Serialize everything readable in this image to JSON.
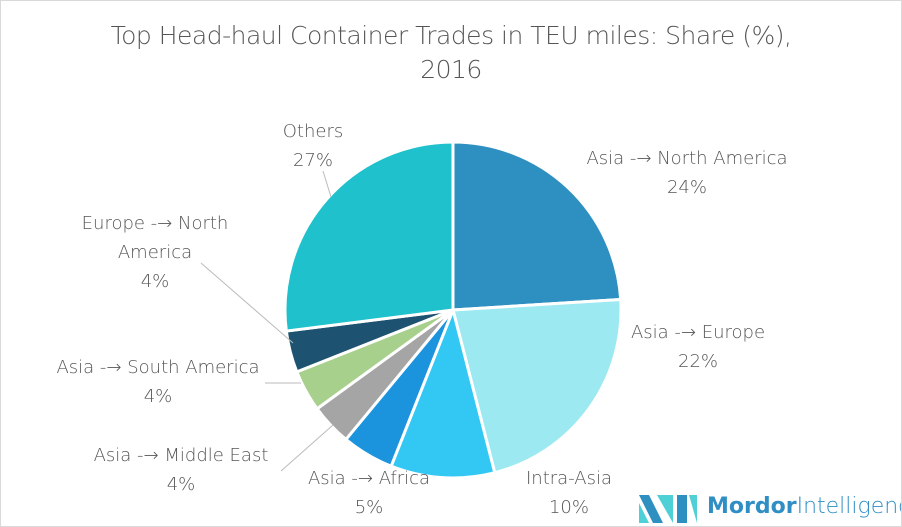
{
  "chart_data": {
    "type": "pie",
    "title": "Top Head-haul Container Trades in TEU miles: Share (%), 2016",
    "title_lines": [
      "Top Head-haul Container Trades in TEU miles: Share (%),",
      "2016"
    ],
    "unit": "%",
    "slices": [
      {
        "label": "Asia -> North America",
        "value": 24,
        "value_label": "24%",
        "color": "#2e8fc1"
      },
      {
        "label": "Asia -> Europe",
        "value": 22,
        "value_label": "22%",
        "color": "#9ce9f1"
      },
      {
        "label": "Intra-Asia",
        "value": 10,
        "value_label": "10%",
        "color": "#33c8f4"
      },
      {
        "label": "Asia -> Africa",
        "value": 5,
        "value_label": "5%",
        "color": "#1b93dd"
      },
      {
        "label": "Asia -> Middle East",
        "value": 4,
        "value_label": "4%",
        "color": "#a5a5a5"
      },
      {
        "label": "Asia -> South America",
        "value": 4,
        "value_label": "4%",
        "color": "#a8d08d"
      },
      {
        "label": "Europe -> North America",
        "value": 4,
        "value_label": "4%",
        "color": "#1d5370"
      },
      {
        "label": "Others",
        "value": 27,
        "value_label": "27%",
        "color": "#1fc1cc"
      }
    ]
  },
  "label_lines": [
    [
      "Asia -> North America",
      "24%"
    ],
    [
      "Asia -> Europe",
      "22%"
    ],
    [
      "Intra-Asia",
      "10%"
    ],
    [
      "Asia -> Africa",
      "5%"
    ],
    [
      "Asia -> Middle East",
      "4%"
    ],
    [
      "Asia -> South America",
      "4%"
    ],
    [
      "Europe -> North",
      "America",
      "4%"
    ],
    [
      "Others",
      "27%"
    ]
  ],
  "logo": {
    "bold": "Mordor",
    "light": "Intelligence"
  }
}
